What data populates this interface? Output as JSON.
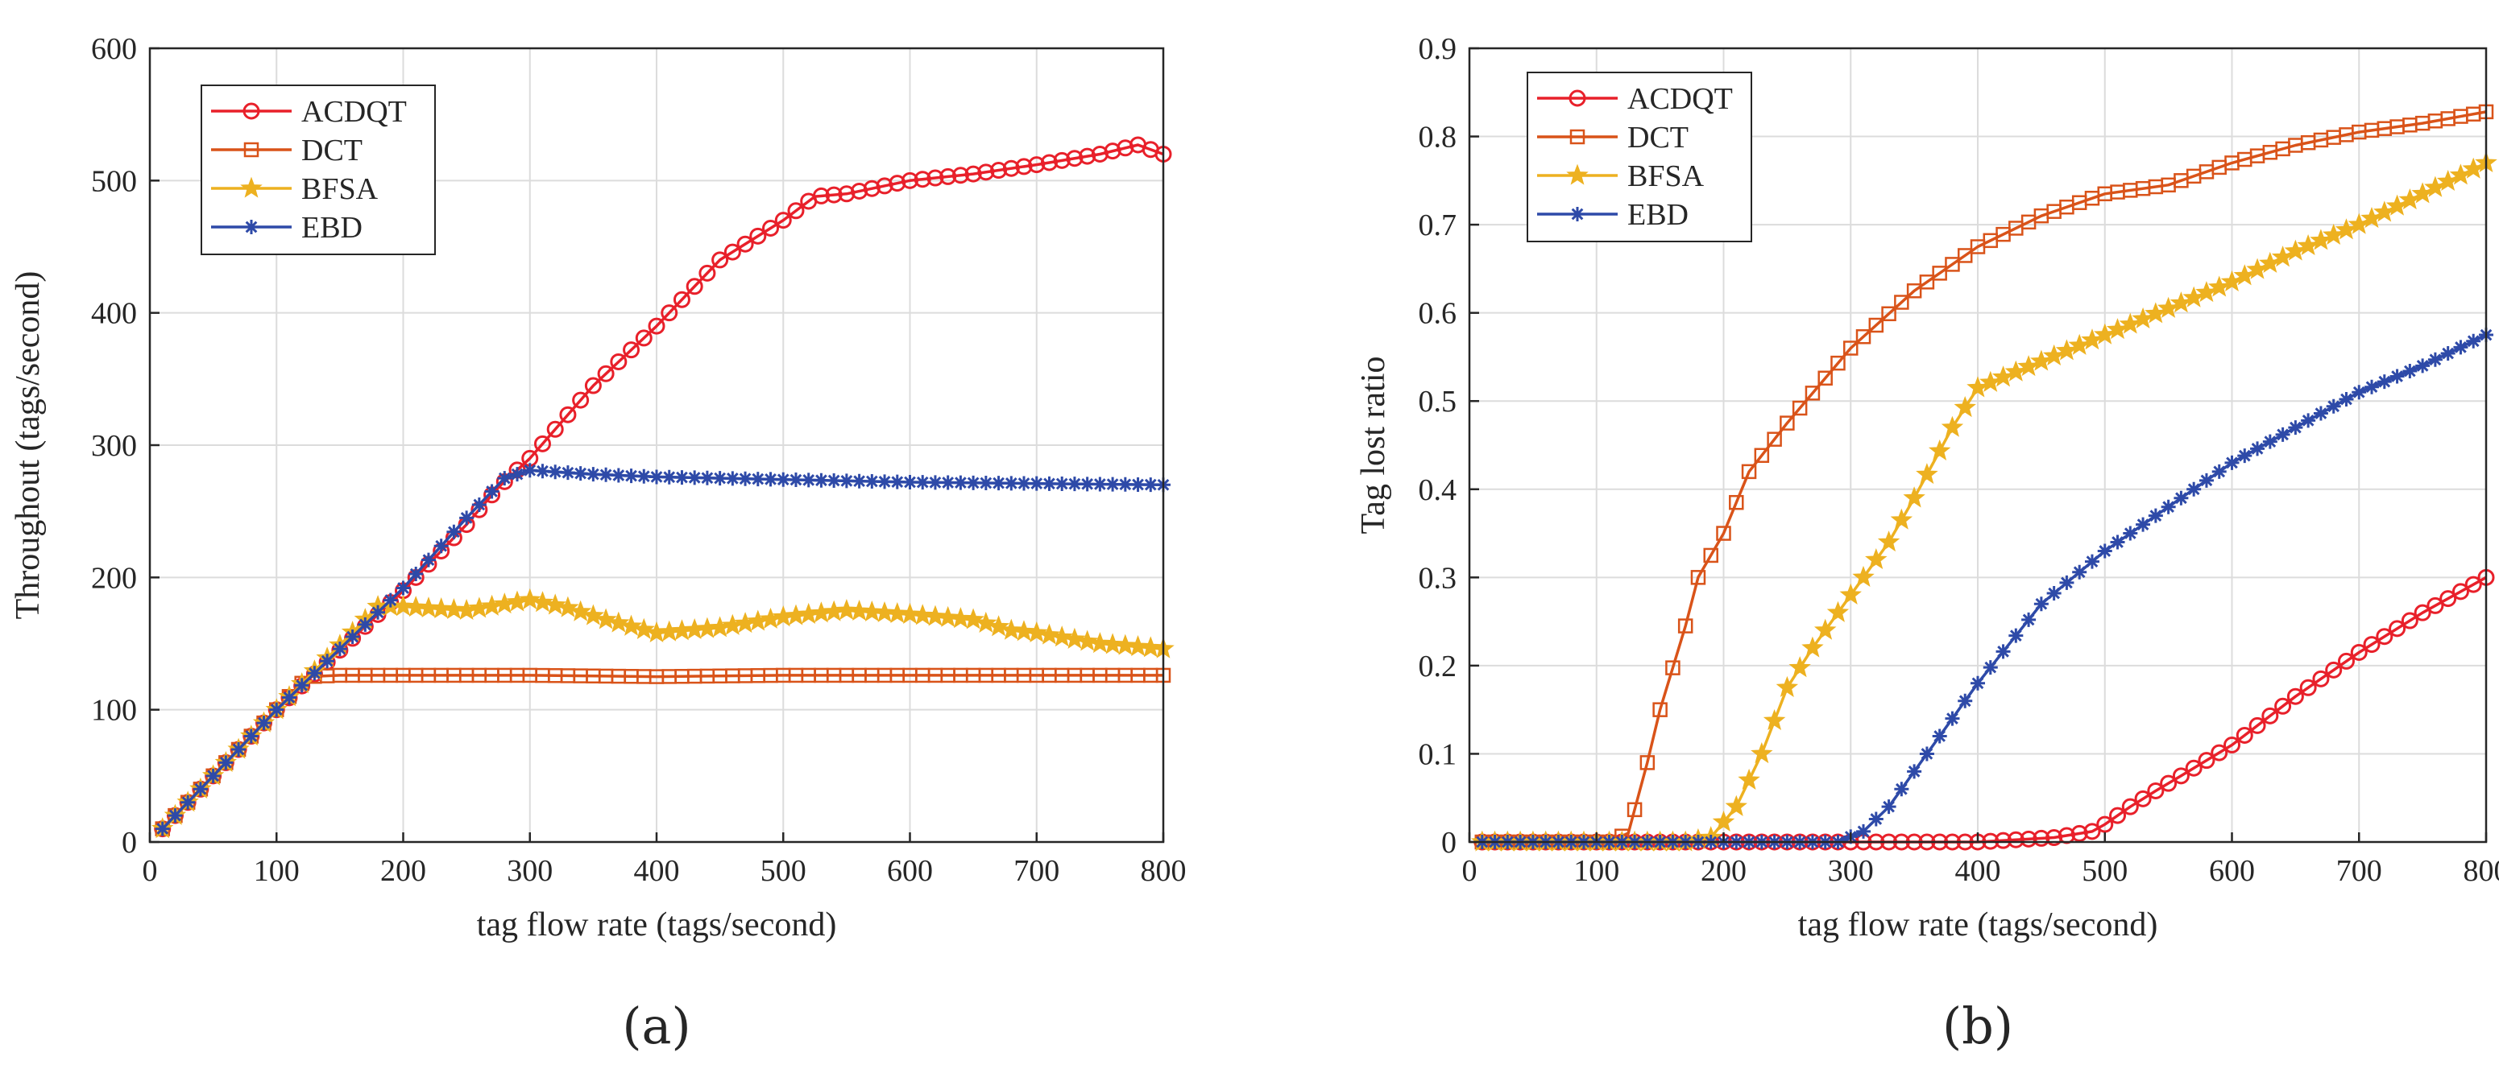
{
  "colors": {
    "ACDQT": "#e8202a",
    "DCT": "#d95319",
    "BFSA": "#edb120",
    "EBD": "#2e4aa8",
    "grid": "#dcdcdc",
    "axis": "#262626"
  },
  "chart_data": [
    {
      "panel": "a",
      "panel_label": "(a)",
      "type": "line",
      "title": "",
      "xlabel": "tag flow rate (tags/second)",
      "ylabel": "Throughout (tags/second)",
      "xlim": [
        0,
        800
      ],
      "ylim": [
        0,
        600
      ],
      "xticks": [
        0,
        100,
        200,
        300,
        400,
        500,
        600,
        700,
        800
      ],
      "yticks": [
        0,
        100,
        200,
        300,
        400,
        500,
        600
      ],
      "grid": true,
      "legend_position": "top-left",
      "series": [
        {
          "name": "ACDQT",
          "marker": "circle",
          "x": [
            10,
            100,
            200,
            250,
            275,
            300,
            350,
            400,
            450,
            500,
            525,
            550,
            600,
            650,
            700,
            750,
            780,
            800
          ],
          "values": [
            10,
            100,
            190,
            240,
            268,
            290,
            345,
            390,
            440,
            470,
            488,
            490,
            500,
            505,
            512,
            520,
            527,
            520
          ]
        },
        {
          "name": "DCT",
          "marker": "square",
          "x": [
            10,
            100,
            125,
            150,
            200,
            300,
            400,
            500,
            600,
            700,
            800
          ],
          "values": [
            10,
            100,
            125,
            126,
            126,
            126,
            125,
            126,
            126,
            126,
            126
          ]
        },
        {
          "name": "BFSA",
          "marker": "star",
          "x": [
            10,
            100,
            180,
            200,
            250,
            300,
            330,
            360,
            400,
            450,
            500,
            550,
            600,
            650,
            680,
            700,
            750,
            800
          ],
          "values": [
            10,
            100,
            178,
            178,
            175,
            183,
            177,
            168,
            158,
            162,
            170,
            175,
            172,
            168,
            160,
            158,
            150,
            146
          ]
        },
        {
          "name": "EBD",
          "marker": "asterisk",
          "x": [
            10,
            100,
            200,
            250,
            280,
            300,
            350,
            400,
            500,
            600,
            700,
            800
          ],
          "values": [
            10,
            100,
            192,
            245,
            275,
            281,
            278,
            276,
            274,
            272,
            271,
            270
          ]
        }
      ]
    },
    {
      "panel": "b",
      "panel_label": "(b)",
      "type": "line",
      "title": "",
      "xlabel": "tag flow rate (tags/second)",
      "ylabel": "Tag lost ratio",
      "xlim": [
        0,
        800
      ],
      "ylim": [
        0,
        0.9
      ],
      "xticks": [
        0,
        100,
        200,
        300,
        400,
        500,
        600,
        700,
        800
      ],
      "yticks": [
        0,
        0.1,
        0.2,
        0.3,
        0.4,
        0.5,
        0.6,
        0.7,
        0.8,
        0.9
      ],
      "grid": true,
      "legend_position": "top-left",
      "series": [
        {
          "name": "ACDQT",
          "marker": "circle",
          "x": [
            10,
            200,
            400,
            460,
            490,
            500,
            520,
            540,
            560,
            600,
            650,
            700,
            750,
            800
          ],
          "values": [
            0,
            0,
            0,
            0.005,
            0.012,
            0.02,
            0.04,
            0.058,
            0.075,
            0.11,
            0.165,
            0.215,
            0.26,
            0.3
          ]
        },
        {
          "name": "DCT",
          "marker": "square",
          "x": [
            10,
            110,
            125,
            140,
            150,
            170,
            180,
            200,
            220,
            250,
            300,
            350,
            400,
            450,
            500,
            550,
            600,
            650,
            700,
            750,
            800
          ],
          "values": [
            0,
            0,
            0.01,
            0.09,
            0.15,
            0.245,
            0.3,
            0.35,
            0.42,
            0.475,
            0.56,
            0.625,
            0.675,
            0.71,
            0.735,
            0.745,
            0.77,
            0.79,
            0.805,
            0.815,
            0.828
          ]
        },
        {
          "name": "BFSA",
          "marker": "star",
          "x": [
            10,
            170,
            190,
            210,
            230,
            250,
            270,
            300,
            330,
            350,
            380,
            400,
            450,
            500,
            550,
            600,
            650,
            700,
            750,
            800
          ],
          "values": [
            0,
            0,
            0.005,
            0.04,
            0.1,
            0.175,
            0.22,
            0.28,
            0.34,
            0.39,
            0.47,
            0.515,
            0.545,
            0.575,
            0.605,
            0.635,
            0.67,
            0.7,
            0.735,
            0.77
          ]
        },
        {
          "name": "EBD",
          "marker": "asterisk",
          "x": [
            10,
            290,
            310,
            330,
            350,
            370,
            400,
            450,
            500,
            550,
            600,
            650,
            700,
            750,
            800
          ],
          "values": [
            0,
            0,
            0.012,
            0.04,
            0.08,
            0.12,
            0.18,
            0.27,
            0.33,
            0.38,
            0.43,
            0.47,
            0.51,
            0.54,
            0.575
          ]
        }
      ]
    }
  ]
}
